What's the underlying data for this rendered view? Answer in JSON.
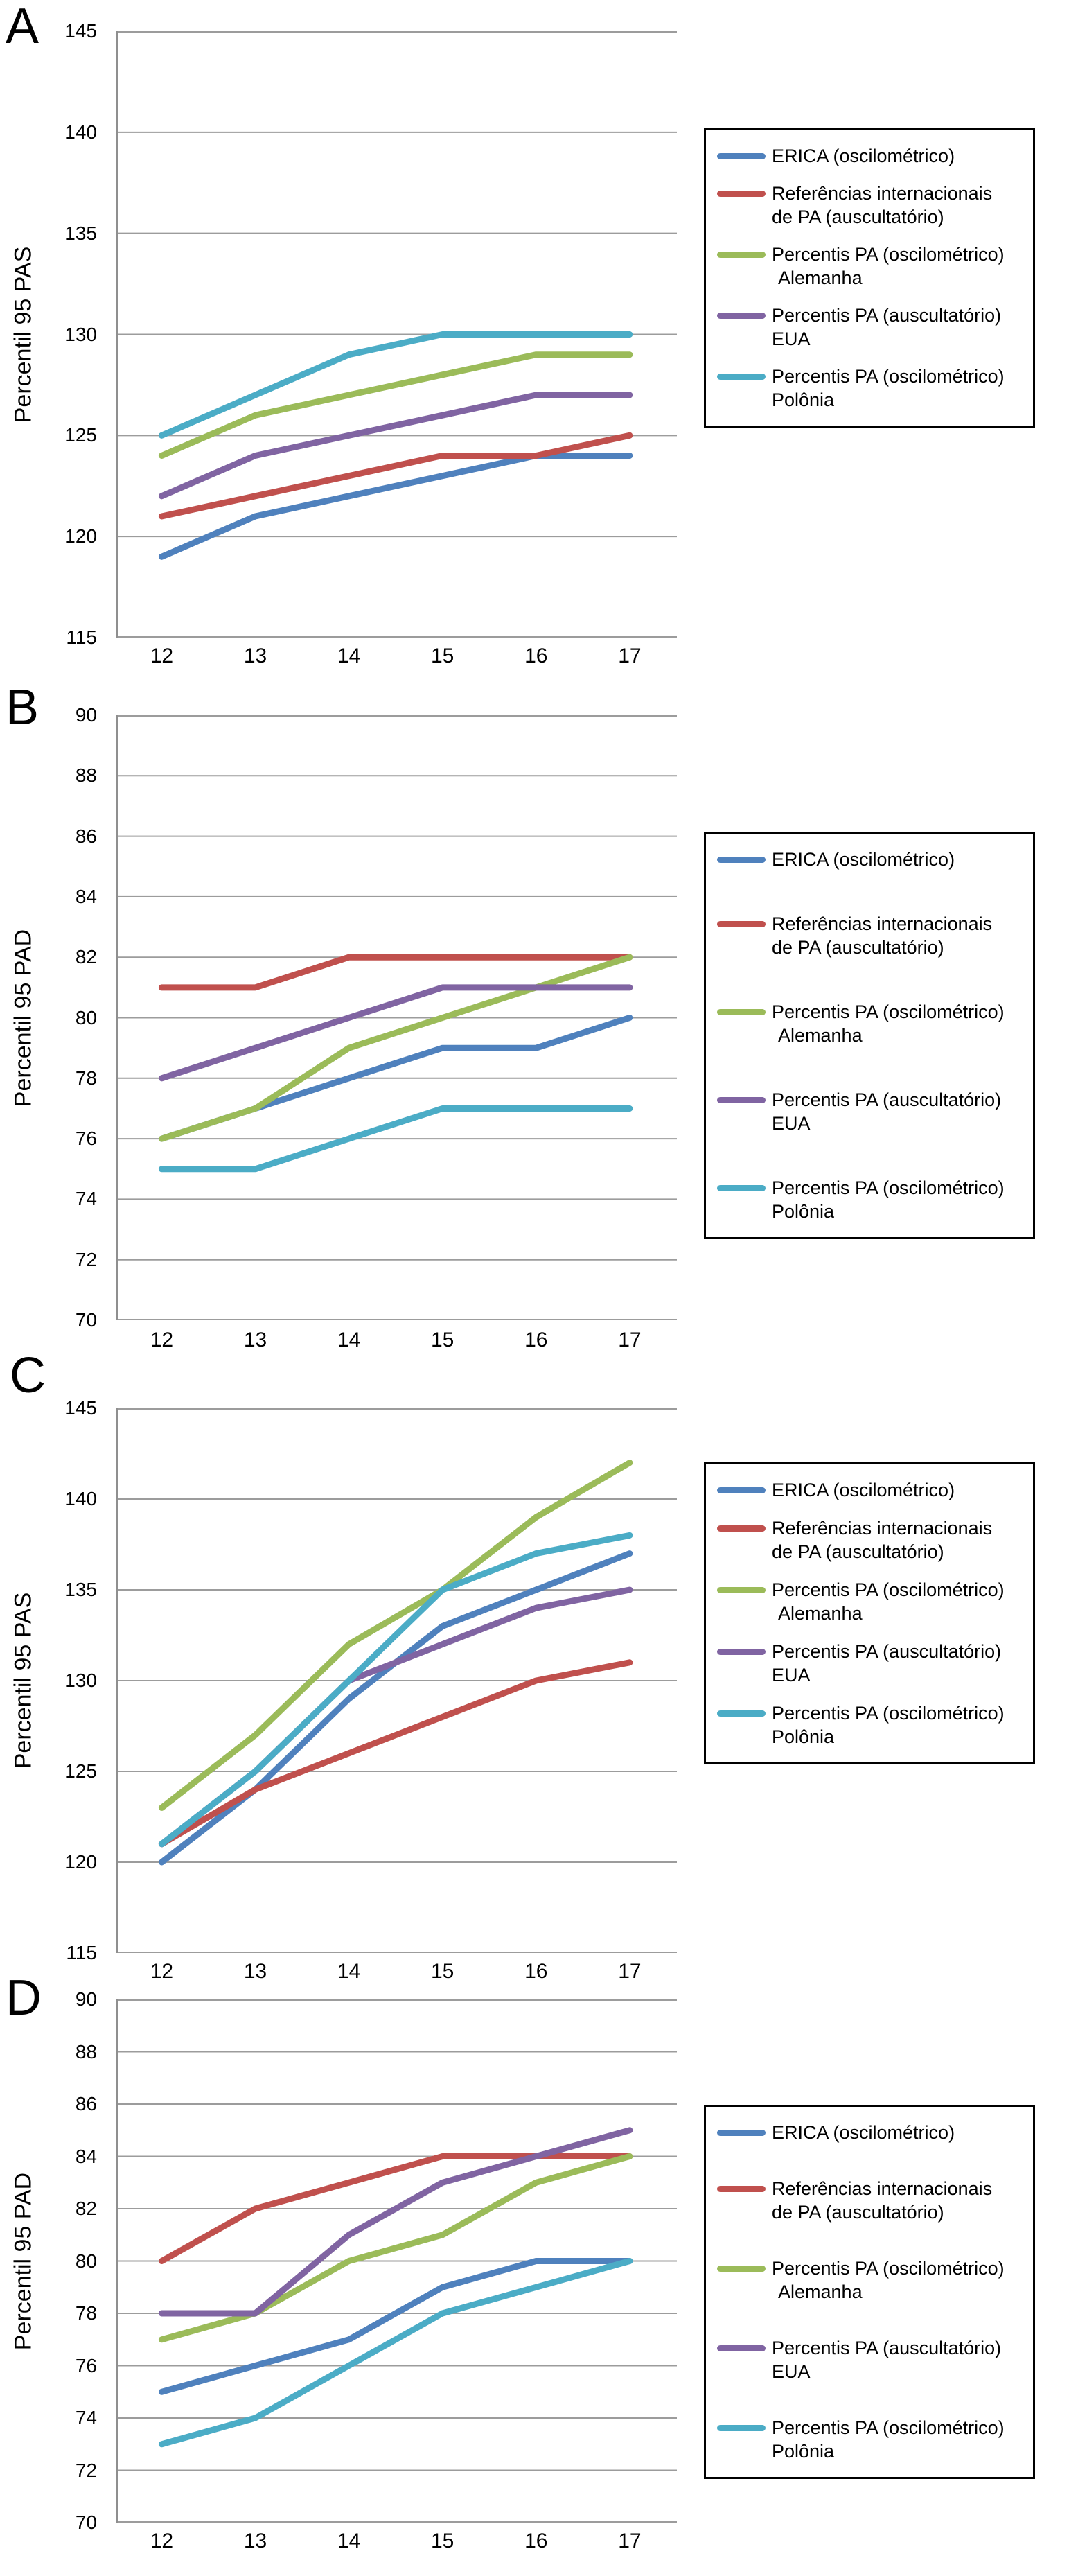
{
  "figure": {
    "type": "multi-panel-line-chart",
    "panels_count": 4,
    "x_axis_values": [
      "12",
      "13",
      "14",
      "15",
      "16",
      "17"
    ]
  },
  "colors": {
    "erica_blue": "#4F81BD",
    "referencias_red": "#C0504D",
    "alemanha_green": "#9BBB59",
    "eua_purple": "#8064A2",
    "polonia_cyan": "#4BACC6",
    "gridline_grey": "#9c9c9c",
    "axis_grey": "#8f8f8f",
    "legend_border": "#000000"
  },
  "chart_data": [
    {
      "type": "line",
      "panel": "A",
      "ylabel": "Percentil 95 PAS",
      "x": [
        "12",
        "13",
        "14",
        "15",
        "16",
        "17"
      ],
      "ylim": [
        115,
        145
      ],
      "yticks": [
        "145",
        "140",
        "135",
        "130",
        "125",
        "120",
        "115"
      ],
      "grid": true,
      "legend_position": "right",
      "series": [
        {
          "name": "ERICA (oscilométrico)",
          "legend_lines": [
            "ERICA (oscilométrico)"
          ],
          "color": "#4F81BD",
          "values": [
            119,
            121,
            122,
            123,
            124,
            124
          ]
        },
        {
          "name": "Referências internacionais de PA (auscultatório)",
          "legend_lines": [
            "Referências internacionais",
            "de PA (auscultatório)"
          ],
          "color": "#C0504D",
          "values": [
            121,
            122,
            123,
            124,
            124,
            125
          ]
        },
        {
          "name": "Percentis PA (oscilométrico) Alemanha",
          "legend_lines": [
            "Percentis PA (oscilométrico)",
            "Alemanha"
          ],
          "color": "#9BBB59",
          "values": [
            124,
            126,
            127,
            128,
            129,
            129
          ]
        },
        {
          "name": "Percentis PA (auscultatório) EUA",
          "legend_lines": [
            "Percentis PA (auscultatório)",
            "EUA"
          ],
          "color": "#8064A2",
          "values": [
            122,
            124,
            125,
            126,
            127,
            127
          ]
        },
        {
          "name": "Percentis PA (oscilométrico) Polônia",
          "legend_lines": [
            "Percentis PA (oscilométrico)",
            "Polônia"
          ],
          "color": "#4BACC6",
          "values": [
            125,
            127,
            129,
            130,
            130,
            130
          ]
        }
      ]
    },
    {
      "type": "line",
      "panel": "B",
      "ylabel": "Percentil 95 PAD",
      "x": [
        "12",
        "13",
        "14",
        "15",
        "16",
        "17"
      ],
      "ylim": [
        70,
        90
      ],
      "yticks": [
        "90",
        "88",
        "86",
        "84",
        "82",
        "80",
        "78",
        "76",
        "74",
        "72",
        "70"
      ],
      "grid": true,
      "legend_position": "right",
      "series": [
        {
          "name": "ERICA (oscilométrico)",
          "legend_lines": [
            "ERICA (oscilométrico)"
          ],
          "color": "#4F81BD",
          "values": [
            76,
            77,
            78,
            79,
            79,
            80
          ]
        },
        {
          "name": "Referências internacionais de PA (auscultatório)",
          "legend_lines": [
            "Referências internacionais",
            "de PA (auscultatório)"
          ],
          "color": "#C0504D",
          "values": [
            81,
            81,
            82,
            82,
            82,
            82
          ]
        },
        {
          "name": "Percentis PA (oscilométrico) Alemanha",
          "legend_lines": [
            "Percentis PA (oscilométrico)",
            "Alemanha"
          ],
          "color": "#9BBB59",
          "values": [
            76,
            77,
            79,
            80,
            81,
            82
          ]
        },
        {
          "name": "Percentis PA (auscultatório) EUA",
          "legend_lines": [
            "Percentis PA (auscultatório)",
            "EUA"
          ],
          "color": "#8064A2",
          "values": [
            78,
            79,
            80,
            81,
            81,
            81
          ]
        },
        {
          "name": "Percentis PA (oscilométrico) Polônia",
          "legend_lines": [
            "Percentis PA (oscilométrico)",
            "Polônia"
          ],
          "color": "#4BACC6",
          "values": [
            75,
            75,
            76,
            77,
            77,
            77
          ]
        }
      ]
    },
    {
      "type": "line",
      "panel": "C",
      "ylabel": "Percentil 95 PAS",
      "x": [
        "12",
        "13",
        "14",
        "15",
        "16",
        "17"
      ],
      "ylim": [
        115,
        145
      ],
      "yticks": [
        "145",
        "140",
        "135",
        "130",
        "125",
        "120",
        "115"
      ],
      "grid": true,
      "legend_position": "right",
      "series": [
        {
          "name": "ERICA (oscilométrico)",
          "legend_lines": [
            "ERICA (oscilométrico)"
          ],
          "color": "#4F81BD",
          "values": [
            120,
            124,
            129,
            133,
            135,
            137
          ]
        },
        {
          "name": "Referências internacionais de PA (auscultatório)",
          "legend_lines": [
            "Referências internacionais",
            "de PA (auscultatório)"
          ],
          "color": "#C0504D",
          "values": [
            121,
            124,
            126,
            128,
            130,
            131
          ]
        },
        {
          "name": "Percentis PA (oscilométrico) Alemanha",
          "legend_lines": [
            "Percentis PA (oscilométrico)",
            "Alemanha"
          ],
          "color": "#9BBB59",
          "values": [
            123,
            127,
            132,
            135,
            139,
            142
          ]
        },
        {
          "name": "Percentis PA (auscultatório) EUA",
          "legend_lines": [
            "Percentis PA (auscultatório)",
            "EUA"
          ],
          "color": "#8064A2",
          "values": [
            121,
            125,
            130,
            132,
            134,
            135
          ]
        },
        {
          "name": "Percentis PA (oscilométrico) Polônia",
          "legend_lines": [
            "Percentis PA (oscilométrico)",
            "Polônia"
          ],
          "color": "#4BACC6",
          "values": [
            121,
            125,
            130,
            135,
            137,
            138
          ]
        }
      ]
    },
    {
      "type": "line",
      "panel": "D",
      "ylabel": "Percentil 95 PAD",
      "x": [
        "12",
        "13",
        "14",
        "15",
        "16",
        "17"
      ],
      "ylim": [
        70,
        90
      ],
      "yticks": [
        "90",
        "88",
        "86",
        "84",
        "82",
        "80",
        "78",
        "76",
        "74",
        "72",
        "70"
      ],
      "grid": true,
      "legend_position": "right",
      "series": [
        {
          "name": "ERICA (oscilométrico)",
          "legend_lines": [
            "ERICA (oscilométrico)"
          ],
          "color": "#4F81BD",
          "values": [
            75,
            76,
            77,
            79,
            80,
            80
          ]
        },
        {
          "name": "Referências internacionais de PA (auscultatório)",
          "legend_lines": [
            "Referências internacionais",
            "de PA (auscultatório)"
          ],
          "color": "#C0504D",
          "values": [
            80,
            82,
            83,
            84,
            84,
            84
          ]
        },
        {
          "name": "Percentis PA (oscilométrico) Alemanha",
          "legend_lines": [
            "Percentis PA (oscilométrico)",
            "Alemanha"
          ],
          "color": "#9BBB59",
          "values": [
            77,
            78,
            80,
            81,
            83,
            84
          ]
        },
        {
          "name": "Percentis PA (auscultatório) EUA",
          "legend_lines": [
            "Percentis PA (auscultatório)",
            "EUA"
          ],
          "color": "#8064A2",
          "values": [
            78,
            78,
            81,
            83,
            84,
            85
          ]
        },
        {
          "name": "Percentis PA (oscilométrico) Polônia",
          "legend_lines": [
            "Percentis PA (oscilométrico)",
            "Polônia"
          ],
          "color": "#4BACC6",
          "values": [
            73,
            74,
            76,
            78,
            79,
            80
          ]
        }
      ]
    }
  ]
}
